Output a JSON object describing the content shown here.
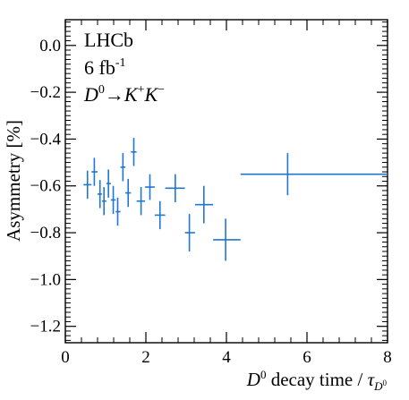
{
  "chart_data": {
    "type": "scatter",
    "title": "",
    "annotations": {
      "experiment": "LHCb",
      "luminosity_base": "6 fb",
      "luminosity_exp": "-1",
      "decay": {
        "parent": "D",
        "parent_sup": "0",
        "arrow": "→",
        "k1": "K",
        "k1_sup": "+",
        "k2": "K",
        "k2_sup": "−"
      }
    },
    "xlabel": {
      "prefix": "D",
      "prefix_sup": "0",
      "text": " decay time / ",
      "tau": "τ",
      "tau_sub": "D",
      "tau_subsup": "0"
    },
    "ylabel": "Asymmetry [%]",
    "xlim": [
      0,
      8
    ],
    "ylim": [
      -1.27,
      0.11
    ],
    "x_major_ticks": [
      0,
      2,
      4,
      6,
      8
    ],
    "y_major_ticks": [
      0.0,
      -0.2,
      -0.4,
      -0.6,
      -0.8,
      -1.0,
      -1.2
    ],
    "x_tick_labels": [
      "0",
      "2",
      "4",
      "6",
      "8"
    ],
    "y_tick_labels": [
      "0.0",
      "−0.2",
      "−0.4",
      "−0.6",
      "−0.8",
      "−1.0",
      "−1.2"
    ],
    "grid": false,
    "color": "#1f77d0",
    "points": [
      {
        "x": 0.55,
        "y": -0.595,
        "xlo": 0.45,
        "xhi": 0.65,
        "yerr": 0.06
      },
      {
        "x": 0.72,
        "y": -0.54,
        "xlo": 0.65,
        "xhi": 0.8,
        "yerr": 0.06
      },
      {
        "x": 0.86,
        "y": -0.635,
        "xlo": 0.8,
        "xhi": 0.91,
        "yerr": 0.06
      },
      {
        "x": 0.96,
        "y": -0.665,
        "xlo": 0.91,
        "xhi": 1.02,
        "yerr": 0.06
      },
      {
        "x": 1.07,
        "y": -0.59,
        "xlo": 1.02,
        "xhi": 1.13,
        "yerr": 0.06
      },
      {
        "x": 1.19,
        "y": -0.66,
        "xlo": 1.13,
        "xhi": 1.25,
        "yerr": 0.06
      },
      {
        "x": 1.3,
        "y": -0.71,
        "xlo": 1.25,
        "xhi": 1.37,
        "yerr": 0.06
      },
      {
        "x": 1.43,
        "y": -0.52,
        "xlo": 1.37,
        "xhi": 1.49,
        "yerr": 0.06
      },
      {
        "x": 1.56,
        "y": -0.63,
        "xlo": 1.49,
        "xhi": 1.63,
        "yerr": 0.06
      },
      {
        "x": 1.7,
        "y": -0.455,
        "xlo": 1.63,
        "xhi": 1.77,
        "yerr": 0.06
      },
      {
        "x": 1.88,
        "y": -0.665,
        "xlo": 1.77,
        "xhi": 1.98,
        "yerr": 0.06
      },
      {
        "x": 2.1,
        "y": -0.605,
        "xlo": 1.98,
        "xhi": 2.22,
        "yerr": 0.055
      },
      {
        "x": 2.35,
        "y": -0.725,
        "xlo": 2.22,
        "xhi": 2.48,
        "yerr": 0.06
      },
      {
        "x": 2.73,
        "y": -0.61,
        "xlo": 2.48,
        "xhi": 2.97,
        "yerr": 0.06
      },
      {
        "x": 3.08,
        "y": -0.8,
        "xlo": 2.97,
        "xhi": 3.22,
        "yerr": 0.08
      },
      {
        "x": 3.44,
        "y": -0.68,
        "xlo": 3.22,
        "xhi": 3.67,
        "yerr": 0.08
      },
      {
        "x": 3.98,
        "y": -0.83,
        "xlo": 3.67,
        "xhi": 4.35,
        "yerr": 0.09
      },
      {
        "x": 5.52,
        "y": -0.55,
        "xlo": 4.35,
        "xhi": 8.0,
        "yerr": 0.09
      }
    ]
  }
}
